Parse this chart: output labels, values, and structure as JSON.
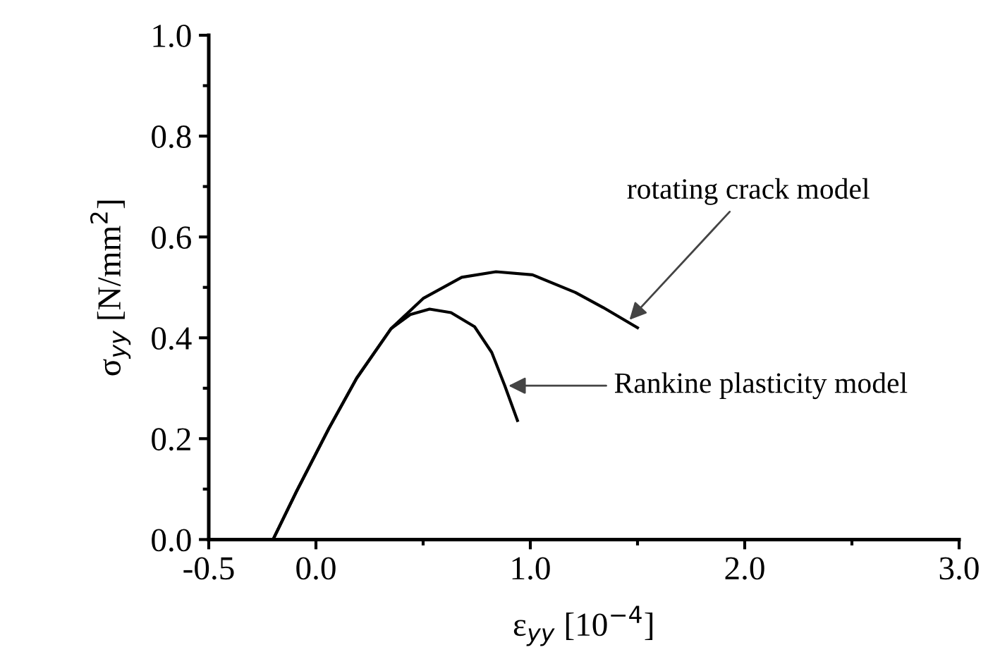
{
  "chart_data": {
    "type": "line",
    "xlabel": "ε$_{yy}$ [10$^{−4}$]",
    "ylabel": "σ$_{yy}$ [N/mm$^{2}$]",
    "series": [
      {
        "color": "#000000",
        "x": [
          -0.2,
          -0.09,
          0.06,
          0.19,
          0.35,
          0.5,
          0.68,
          0.84,
          1.01,
          1.21,
          1.34,
          1.5
        ],
        "values": [
          0.0,
          0.096,
          0.22,
          0.32,
          0.418,
          0.478,
          0.52,
          0.531,
          0.525,
          0.49,
          0.46,
          0.42
        ]
      },
      {
        "color": "#000000",
        "x": [
          -0.2,
          -0.09,
          0.06,
          0.19,
          0.35,
          0.44,
          0.53,
          0.63,
          0.74,
          0.82,
          0.88,
          0.94
        ],
        "values": [
          0.0,
          0.096,
          0.22,
          0.32,
          0.418,
          0.446,
          0.457,
          0.45,
          0.422,
          0.371,
          0.306,
          0.236
        ]
      }
    ],
    "annotations": [
      {
        "text": "rotating crack model",
        "x": 1.45,
        "y": 0.43
      },
      {
        "text": "Rankine plasticity model",
        "x": 0.88,
        "y": 0.305
      }
    ],
    "xlim": [
      -0.5,
      3.0
    ],
    "ylim": [
      0.0,
      1.0
    ],
    "xticks": [
      {
        "value": -0.5,
        "label": "-0.5"
      },
      {
        "value": 0.0,
        "label": "0.0"
      },
      {
        "value": 0.5,
        "label": null
      },
      {
        "value": 1.0,
        "label": "1.0"
      },
      {
        "value": 1.5,
        "label": null
      },
      {
        "value": 2.0,
        "label": "2.0"
      },
      {
        "value": 2.5,
        "label": null
      },
      {
        "value": 3.0,
        "label": "3.0"
      }
    ],
    "yticks": [
      {
        "value": 0.0,
        "label": "0.0"
      },
      {
        "value": 0.1,
        "label": null
      },
      {
        "value": 0.2,
        "label": "0.2"
      },
      {
        "value": 0.3,
        "label": null
      },
      {
        "value": 0.4,
        "label": "0.4"
      },
      {
        "value": 0.5,
        "label": null
      },
      {
        "value": 0.6,
        "label": "0.6"
      },
      {
        "value": 0.7,
        "label": null
      },
      {
        "value": 0.8,
        "label": "0.8"
      },
      {
        "value": 0.9,
        "label": null
      },
      {
        "value": 1.0,
        "label": "1.0"
      }
    ],
    "grid": false,
    "legend": false,
    "line_style": "solid",
    "marker": "none"
  }
}
